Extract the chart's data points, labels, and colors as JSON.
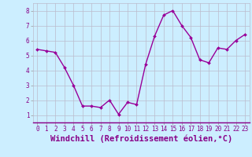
{
  "x": [
    0,
    1,
    2,
    3,
    4,
    5,
    6,
    7,
    8,
    9,
    10,
    11,
    12,
    13,
    14,
    15,
    16,
    17,
    18,
    19,
    20,
    21,
    22,
    23
  ],
  "y": [
    5.4,
    5.3,
    5.2,
    4.2,
    3.0,
    1.6,
    1.6,
    1.5,
    2.0,
    1.05,
    1.85,
    1.7,
    4.4,
    6.3,
    7.7,
    8.0,
    7.0,
    6.2,
    4.7,
    4.5,
    5.5,
    5.4,
    6.0,
    6.4
  ],
  "line_color": "#990099",
  "marker": "D",
  "marker_size": 2.0,
  "bg_color": "#cceeff",
  "grid_color": "#bbbbcc",
  "xlabel": "Windchill (Refroidissement éolien,°C)",
  "ylim": [
    0.5,
    8.5
  ],
  "xlim": [
    -0.5,
    23.5
  ],
  "yticks": [
    1,
    2,
    3,
    4,
    5,
    6,
    7,
    8
  ],
  "xticks": [
    0,
    1,
    2,
    3,
    4,
    5,
    6,
    7,
    8,
    9,
    10,
    11,
    12,
    13,
    14,
    15,
    16,
    17,
    18,
    19,
    20,
    21,
    22,
    23
  ],
  "tick_fontsize": 5.5,
  "xlabel_fontsize": 7.5,
  "line_width": 1.0
}
